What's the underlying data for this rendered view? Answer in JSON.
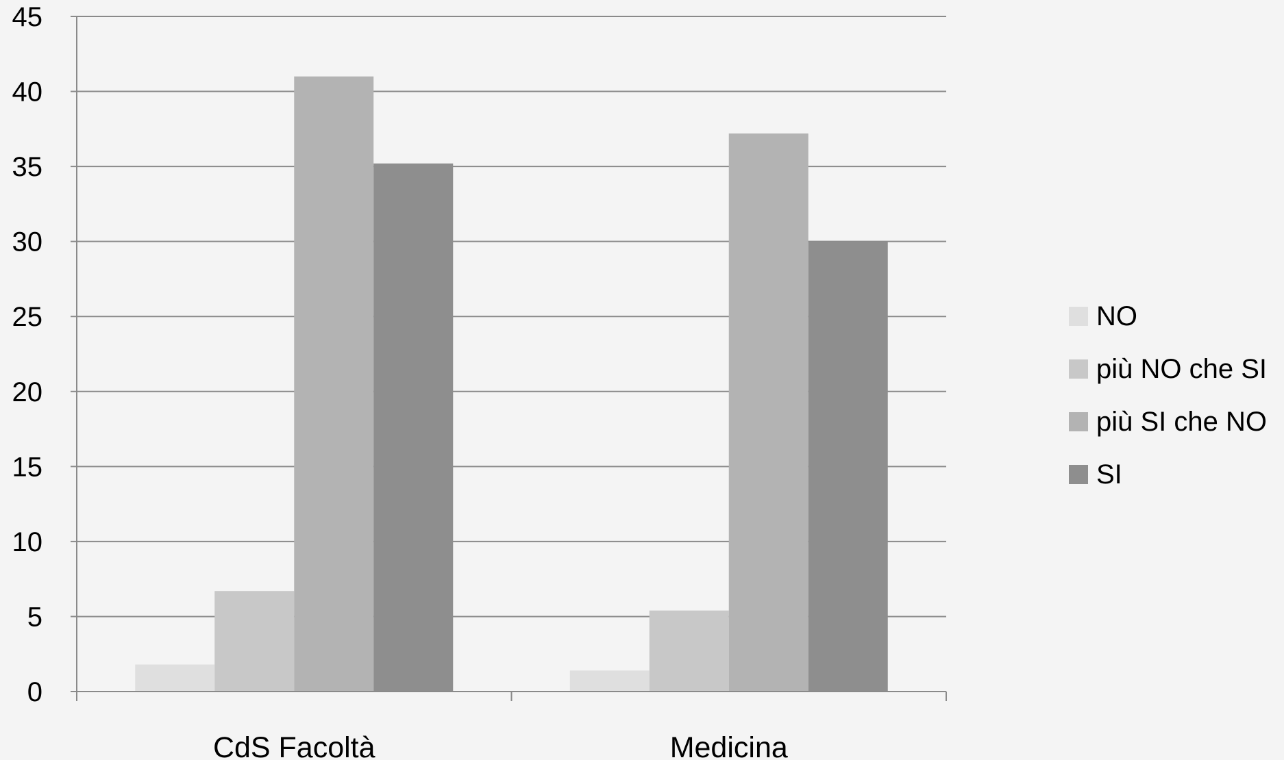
{
  "chart_data": {
    "type": "bar",
    "title": "",
    "xlabel": "",
    "ylabel": "",
    "categories": [
      "CdS Facoltà",
      "Medicina"
    ],
    "series": [
      {
        "name": "NO",
        "values": [
          1.8,
          1.4
        ],
        "color": "#dfdfdf"
      },
      {
        "name": "più NO che SI",
        "values": [
          6.7,
          5.4
        ],
        "color": "#c8c8c8"
      },
      {
        "name": "più SI che NO",
        "values": [
          41.0,
          37.2
        ],
        "color": "#b3b3b3"
      },
      {
        "name": "SI",
        "values": [
          35.2,
          30.0
        ],
        "color": "#8e8e8e"
      }
    ],
    "ylim": [
      0,
      45
    ],
    "yticks": [
      0,
      5,
      10,
      15,
      20,
      25,
      30,
      35,
      40,
      45
    ],
    "grid": true,
    "legend_position": "right",
    "colors": {
      "background": "#f4f4f4",
      "gridline": "#8a8a8a",
      "axis": "#8a8a8a"
    }
  }
}
